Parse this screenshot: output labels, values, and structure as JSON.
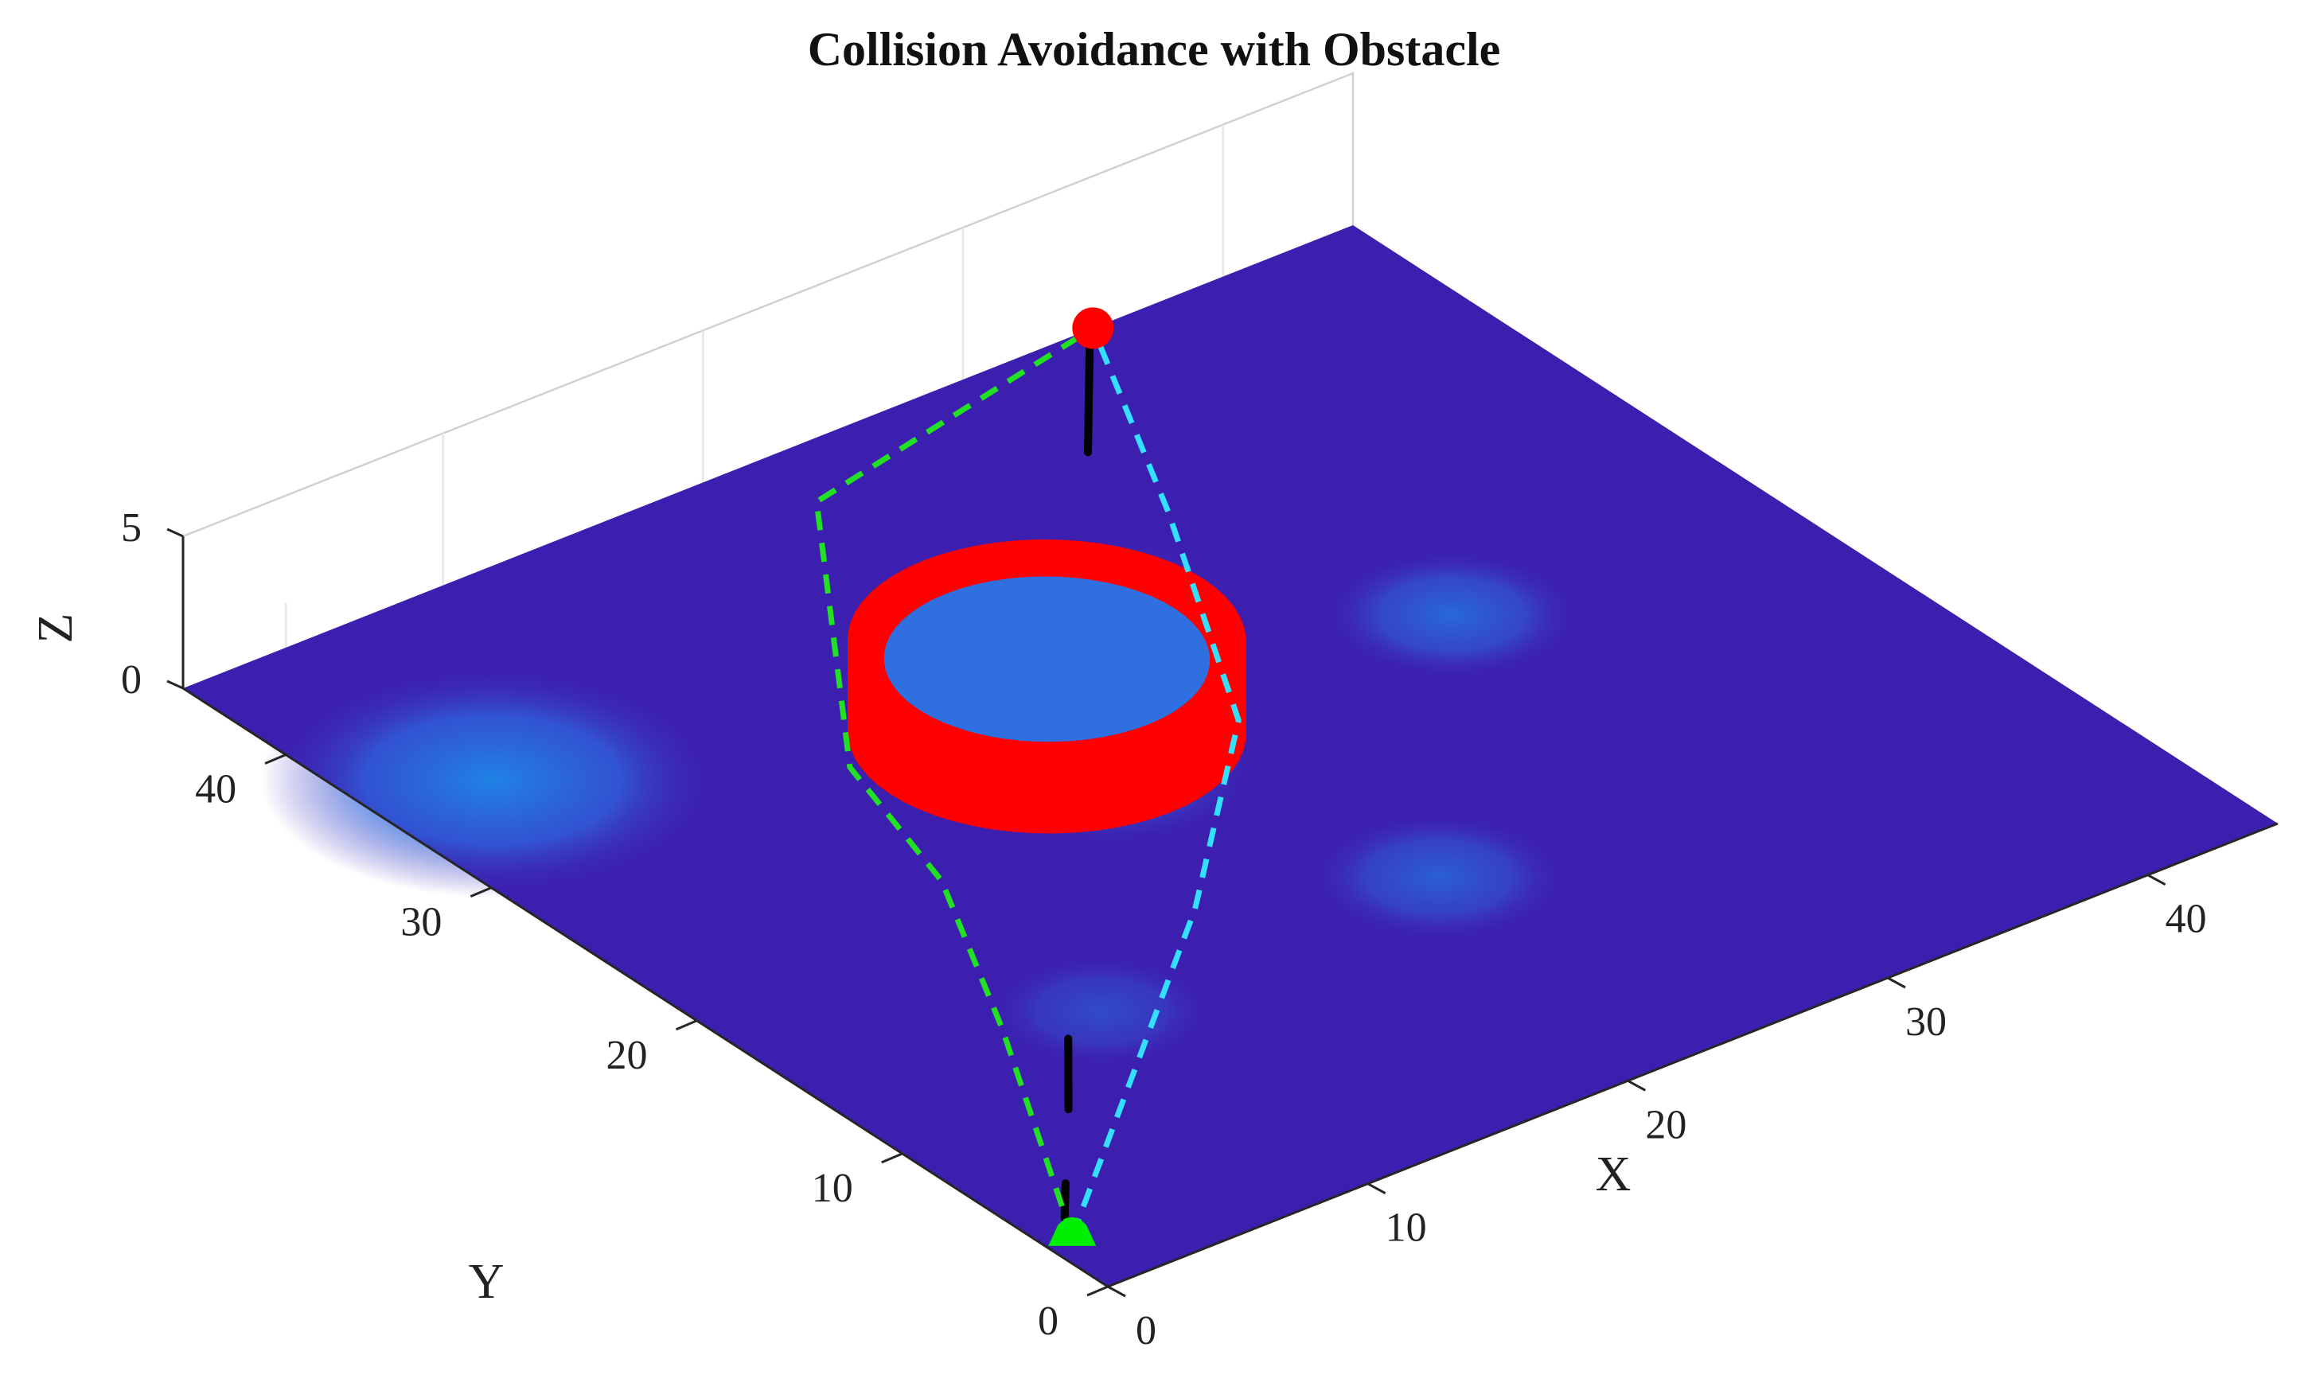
{
  "chart_data": {
    "type": "surface",
    "title": "Collision Avoidance with Obstacle",
    "xlabel": "X",
    "ylabel": "Y",
    "zlabel": "Z",
    "xlim": [
      0,
      45
    ],
    "ylim": [
      0,
      45
    ],
    "zlim": [
      0,
      5
    ],
    "x_ticks": [
      0,
      10,
      20,
      30,
      40
    ],
    "y_ticks": [
      0,
      10,
      20,
      30,
      40
    ],
    "z_ticks": [
      0,
      5
    ],
    "grid": true,
    "colors": {
      "surface_base": "#3d1fb0",
      "surface_peak": "#1e88e8",
      "obstacle": "#ff0000",
      "start_marker": "#00ee00",
      "goal_marker": "#ff0000",
      "path_black": "#000000",
      "path_green": "#22e022",
      "path_cyan": "#33e0ff"
    },
    "surface_bumps": [
      {
        "x": 4,
        "y": 35,
        "amp": 1.0,
        "radius": 7
      },
      {
        "x": 25,
        "y": 32,
        "amp": 0.6,
        "radius": 4
      },
      {
        "x": 19,
        "y": 24,
        "amp": 0.55,
        "radius": 4.5
      },
      {
        "x": 33,
        "y": 25,
        "amp": 0.6,
        "radius": 4
      },
      {
        "x": 23,
        "y": 13,
        "amp": 0.5,
        "radius": 4
      },
      {
        "x": 10,
        "y": 13,
        "amp": 0.3,
        "radius": 3.5
      }
    ],
    "obstacle": {
      "shape": "cylinder",
      "center": [
        19,
        27
      ],
      "radius": 6,
      "z_range": [
        0,
        3
      ]
    },
    "start": [
      1,
      3,
      0
    ],
    "goal": [
      35,
      45,
      0
    ],
    "series": [
      {
        "style": "solid",
        "color": "#000000",
        "segments": [
          [
            [
              1.5,
              4,
              0
            ],
            [
              2.8,
              5.6,
              0
            ]
          ],
          [
            [
              5.6,
              9,
              0
            ],
            [
              8.2,
              12.3,
              0
            ]
          ],
          [
            [
              30.3,
              39.3,
              0
            ],
            [
              34.4,
              44.4,
              0
            ]
          ]
        ]
      },
      {
        "style": "dashed",
        "color": "#22e022",
        "points": [
          [
            1,
            3,
            0
          ],
          [
            7,
            14,
            0
          ],
          [
            11,
            22,
            0
          ],
          [
            13,
            29,
            0
          ],
          [
            22,
            42,
            0
          ],
          [
            35,
            45,
            0
          ]
        ]
      },
      {
        "style": "dashed",
        "color": "#33e0ff",
        "points": [
          [
            1,
            3,
            0
          ],
          [
            16,
            16,
            0
          ],
          [
            24,
            24,
            0
          ],
          [
            30,
            35,
            0
          ],
          [
            35,
            45,
            0
          ]
        ]
      }
    ]
  }
}
